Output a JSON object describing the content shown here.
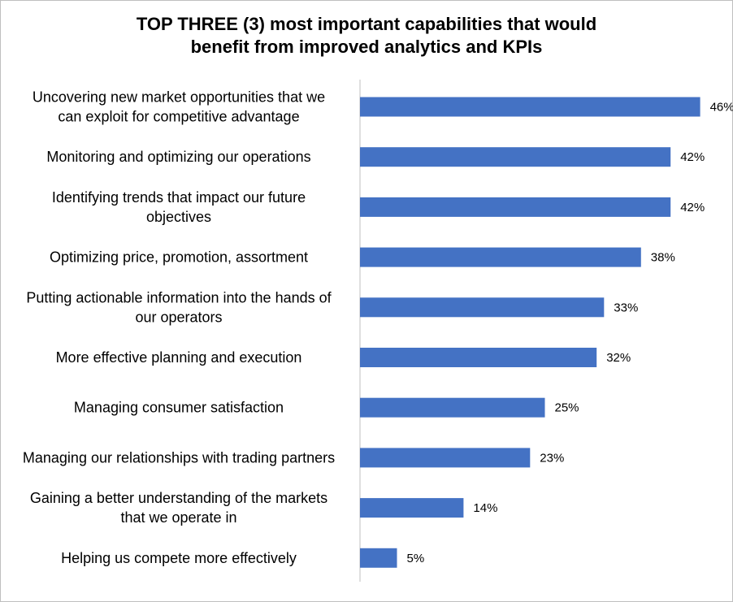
{
  "chart_data": {
    "type": "bar",
    "orientation": "horizontal",
    "title_lines": [
      "TOP THREE (3) most important capabilities that would",
      "benefit from improved analytics and KPIs"
    ],
    "categories": [
      [
        "Uncovering new market opportunities that we",
        "can exploit for competitive advantage"
      ],
      [
        "Monitoring and optimizing our operations"
      ],
      [
        "Identifying trends that impact our future",
        "objectives"
      ],
      [
        "Optimizing price, promotion, assortment"
      ],
      [
        "Putting actionable information into the hands of",
        "our operators"
      ],
      [
        "More effective planning and execution"
      ],
      [
        "Managing consumer satisfaction"
      ],
      [
        "Managing our relationships with trading partners"
      ],
      [
        "Gaining a better understanding of the markets",
        "that we operate in"
      ],
      [
        "Helping us compete more effectively"
      ]
    ],
    "values": [
      46,
      42,
      42,
      38,
      33,
      32,
      25,
      23,
      14,
      5
    ],
    "value_labels": [
      "46%",
      "42%",
      "42%",
      "38%",
      "33%",
      "32%",
      "25%",
      "23%",
      "14%",
      "5%"
    ],
    "unit": "%",
    "xlim": [
      0,
      50
    ],
    "bar_color": "#4472C4",
    "grid": false,
    "legend": "none"
  }
}
